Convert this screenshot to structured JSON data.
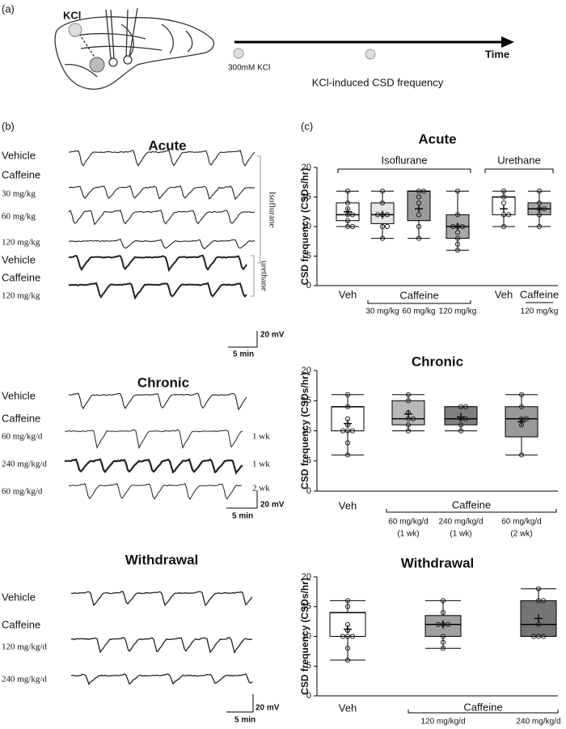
{
  "panel_a": {
    "label": "(a)",
    "kcl": "KCl",
    "dose": "300mM KCl",
    "time": "Time",
    "caption": "KCl-induced CSD frequency"
  },
  "panel_b": {
    "label": "(b)",
    "acute": {
      "title": "Acute",
      "vehicle": "Vehicle",
      "caffeine": "Caffeine",
      "dose1": "30 mg/kg",
      "dose2": "60 mg/kg",
      "dose3": "120 mg/kg",
      "anesthetic1": "Isoflurane",
      "vehicle2": "Vehicle",
      "caffeine2": "Caffeine",
      "dose4": "120 mg/kg",
      "anesthetic2": "urethane",
      "scale_v": "20 mV",
      "scale_t": "5 min"
    },
    "chronic": {
      "title": "Chronic",
      "vehicle": "Vehicle",
      "caffeine": "Caffeine",
      "dose1": "60 mg/kg/d",
      "dur1": "1 wk",
      "dose2": "240 mg/kg/d",
      "dur2": "1 wk",
      "dose3": "60 mg/kg/d",
      "dur3": "2 wk",
      "scale_v": "20 mV",
      "scale_t": "5 min"
    },
    "withdrawal": {
      "title": "Withdrawal",
      "vehicle": "Vehicle",
      "caffeine": "Caffeine",
      "dose1": "120 mg/kg/d",
      "dose2": "240 mg/kg/d",
      "scale_v": "20 mV",
      "scale_t": "5 min"
    }
  },
  "panel_c_label": "(c)",
  "chart_data": [
    {
      "type": "box",
      "title": "Acute",
      "y_label": "CSD frequency (CSDs/hr)",
      "categories": [
        "Veh",
        "30 mg/kg",
        "60 mg/kg",
        "120 mg/kg",
        "Veh",
        "120 mg/kg"
      ],
      "group_labels": [
        "Isoflurane",
        "Urethane"
      ],
      "subgroup_labels": [
        "Caffeine",
        "Caffeine"
      ],
      "ylim": [
        0,
        20
      ],
      "yticks": [
        0,
        5,
        10,
        15,
        20
      ],
      "boxes": [
        {
          "min": 10,
          "q1": 11,
          "median": 12,
          "q3": 14,
          "max": 16,
          "mean": 12.5,
          "color": "#ffffff",
          "points": [
            16,
            14,
            13,
            12,
            12,
            11,
            10,
            10
          ]
        },
        {
          "min": 8,
          "q1": 10.5,
          "median": 12,
          "q3": 14,
          "max": 16,
          "mean": 12,
          "color": "#e6e6e6",
          "points": [
            16,
            14,
            12,
            12,
            12,
            10,
            10,
            8
          ]
        },
        {
          "min": 8,
          "q1": 11,
          "median": 16,
          "q3": 16,
          "max": 16,
          "mean": 13,
          "color": "#9a9a9a",
          "points": [
            16,
            16,
            15,
            14,
            12,
            10,
            8
          ]
        },
        {
          "min": 6,
          "q1": 8,
          "median": 10,
          "q3": 12,
          "max": 16,
          "mean": 10,
          "color": "#a8a8a8",
          "points": [
            16,
            12,
            10,
            10,
            10,
            9,
            8,
            7,
            6
          ]
        },
        {
          "min": 10,
          "q1": 12,
          "median": 15,
          "q3": 15,
          "max": 16,
          "mean": 13,
          "color": "#ffffff",
          "points": [
            16,
            15,
            14,
            12,
            12,
            10
          ]
        },
        {
          "min": 10,
          "q1": 12,
          "median": 13,
          "q3": 14,
          "max": 16,
          "mean": 13,
          "color": "#a8a8a8",
          "points": [
            16,
            14,
            13,
            13,
            12,
            10
          ]
        }
      ]
    },
    {
      "type": "box",
      "title": "Chronic",
      "y_label": "CSD frequency (CSDs/hr)",
      "categories": [
        "Veh",
        "60 mg/kg/d",
        "240 mg/kg/d",
        "60 mg/kg/d"
      ],
      "category_notes": [
        null,
        "(1 wk)",
        "(1 wk)",
        "(2 wk)"
      ],
      "subgroup_labels": [
        "Caffeine"
      ],
      "ylim": [
        0,
        20
      ],
      "yticks": [
        0,
        5,
        10,
        15,
        20
      ],
      "boxes": [
        {
          "min": 6,
          "q1": 10,
          "median": 14,
          "q3": 14,
          "max": 16,
          "mean": 11.2,
          "color": "#ffffff",
          "points": [
            16,
            14,
            12,
            11,
            10,
            10,
            10,
            8,
            6
          ]
        },
        {
          "min": 10,
          "q1": 11,
          "median": 12,
          "q3": 15,
          "max": 16,
          "mean": 12.8,
          "color": "#b8b8b8",
          "points": [
            16,
            15,
            13,
            12,
            12,
            11,
            10
          ]
        },
        {
          "min": 10,
          "q1": 11,
          "median": 12,
          "q3": 14,
          "max": 14,
          "mean": 12.3,
          "color": "#808080",
          "points": [
            14,
            14,
            12,
            12,
            11,
            10
          ]
        },
        {
          "min": 6,
          "q1": 9,
          "median": 12,
          "q3": 14,
          "max": 16,
          "mean": 11.5,
          "color": "#999999",
          "points": [
            16,
            14,
            12,
            12,
            11,
            6
          ]
        }
      ]
    },
    {
      "type": "box",
      "title": "Withdrawal",
      "y_label": "CSD frequency (CSDs/hr)",
      "categories": [
        "Veh",
        "120 mg/kg/d",
        "240 mg/kg/d"
      ],
      "subgroup_labels": [
        "Caffeine"
      ],
      "ylim": [
        0,
        20
      ],
      "yticks": [
        0,
        5,
        10,
        15,
        20
      ],
      "boxes": [
        {
          "min": 6,
          "q1": 10,
          "median": 14,
          "q3": 14,
          "max": 16,
          "mean": 11.2,
          "color": "#ffffff",
          "points": [
            16,
            15,
            12,
            11,
            10,
            10,
            10,
            8,
            6
          ]
        },
        {
          "min": 8,
          "q1": 10,
          "median": 12,
          "q3": 13.5,
          "max": 16,
          "mean": 12,
          "color": "#a0a0a0",
          "points": [
            16,
            14,
            12,
            12,
            12,
            10,
            9,
            8
          ]
        },
        {
          "min": 10,
          "q1": 10,
          "median": 12,
          "q3": 16,
          "max": 18,
          "mean": 13,
          "color": "#747474",
          "points": [
            18,
            16,
            16,
            12,
            10,
            10,
            10
          ]
        }
      ]
    }
  ]
}
